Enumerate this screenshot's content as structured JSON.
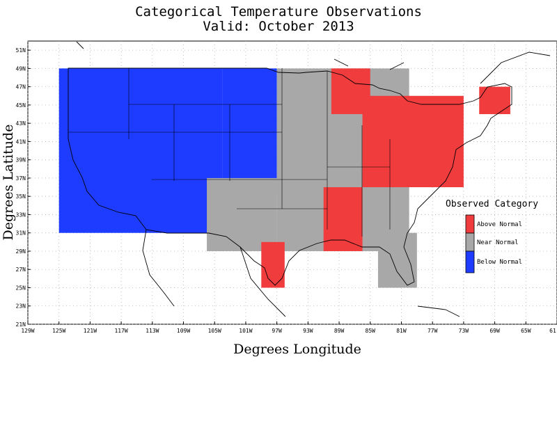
{
  "title_line1": "Categorical Temperature Observations",
  "title_line2": "Valid: October 2013",
  "xlabel": "Degrees Longitude",
  "ylabel": "Degrees Latitude",
  "x_ticks": [
    "129W",
    "125W",
    "121W",
    "117W",
    "113W",
    "109W",
    "105W",
    "101W",
    "97W",
    "93W",
    "89W",
    "85W",
    "81W",
    "77W",
    "73W",
    "69W",
    "65W",
    "61"
  ],
  "y_ticks": [
    "51N",
    "49N",
    "47N",
    "45N",
    "43N",
    "41N",
    "39N",
    "37N",
    "35N",
    "33N",
    "31N",
    "29N",
    "27N",
    "25N",
    "23N",
    "21N"
  ],
  "legend": {
    "title": "Observed Category",
    "items": [
      {
        "label": "Above Normal",
        "color": "#f03c3c"
      },
      {
        "label": "Near Normal",
        "color": "#a8a8a8"
      },
      {
        "label": "Below Normal",
        "color": "#1e3cff"
      }
    ]
  },
  "chart_data": {
    "type": "heatmap",
    "title": "Categorical Temperature Observations Valid: October 2013",
    "xlabel": "Degrees Longitude",
    "ylabel": "Degrees Latitude",
    "xlim": [
      -129,
      -61
    ],
    "ylim": [
      21,
      52
    ],
    "grid": true,
    "legend_placement": "right",
    "categories": [
      "Above Normal",
      "Near Normal",
      "Below Normal"
    ],
    "regions": [
      {
        "category": "Below Normal",
        "lon": [
          -125,
          -104
        ],
        "lat": [
          31,
          49
        ]
      },
      {
        "category": "Below Normal",
        "lon": [
          -104,
          -97
        ],
        "lat": [
          35,
          49
        ]
      },
      {
        "category": "Near Normal",
        "lon": [
          -97,
          -80
        ],
        "lat": [
          29,
          49
        ]
      },
      {
        "category": "Near Normal",
        "lon": [
          -106,
          -97
        ],
        "lat": [
          29,
          37
        ]
      },
      {
        "category": "Near Normal",
        "lon": [
          -84,
          -79
        ],
        "lat": [
          25,
          31
        ]
      },
      {
        "category": "Above Normal",
        "lon": [
          -99,
          -96
        ],
        "lat": [
          25,
          30
        ]
      },
      {
        "category": "Above Normal",
        "lon": [
          -91,
          -86
        ],
        "lat": [
          29,
          36
        ]
      },
      {
        "category": "Above Normal",
        "lon": [
          -90,
          -85
        ],
        "lat": [
          44,
          49
        ]
      },
      {
        "category": "Above Normal",
        "lon": [
          -86,
          -73
        ],
        "lat": [
          36,
          46
        ]
      },
      {
        "category": "Above Normal",
        "lon": [
          -71,
          -67
        ],
        "lat": [
          44,
          47
        ]
      }
    ]
  }
}
